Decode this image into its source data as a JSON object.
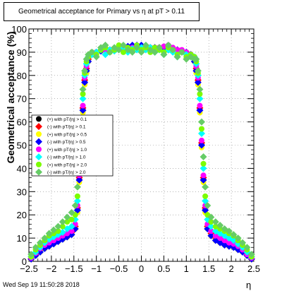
{
  "title": "Geometrical acceptance for Primary vs   η at pT > 0.11",
  "timestamp": "Wed Sep 19 11:50:28 2018",
  "chart_data": {
    "type": "scatter",
    "title": "Geometrical acceptance for Primary vs   η at pT > 0.11",
    "xlabel": "η",
    "ylabel": "Geometrical acceptance (%)",
    "xlim": [
      -2.5,
      2.5
    ],
    "ylim": [
      0,
      100
    ],
    "xticks": [
      "−2.5",
      "−2",
      "−1.5",
      "−1",
      "−0.5",
      "0",
      "0.5",
      "1",
      "1.5",
      "2",
      "2.5"
    ],
    "yticks": [
      "0",
      "10",
      "20",
      "30",
      "40",
      "50",
      "60",
      "70",
      "80",
      "90",
      "100"
    ],
    "legend_position": "left-middle",
    "series": [
      {
        "name": "(+) with pT/|η| > 0.1",
        "color": "#000000",
        "x": [
          -2.45,
          -2.35,
          -2.25,
          -2.15,
          -2.05,
          -1.95,
          -1.85,
          -1.75,
          -1.65,
          -1.55,
          -1.47,
          -1.42,
          -1.38,
          -1.34,
          -1.3,
          -1.26,
          -1.22,
          -1.18,
          -1.1,
          -1.0,
          -0.9,
          -0.8,
          -0.7,
          -0.6,
          -0.5,
          -0.4,
          -0.3,
          -0.2,
          -0.1,
          0.0,
          0.1,
          0.2,
          0.3,
          0.4,
          0.5,
          0.6,
          0.7,
          0.8,
          0.9,
          1.0,
          1.1,
          1.18,
          1.22,
          1.26,
          1.3,
          1.34,
          1.38,
          1.42,
          1.47,
          1.55,
          1.65,
          1.75,
          1.85,
          1.95,
          2.05,
          2.15,
          2.25,
          2.35,
          2.45
        ],
        "y": [
          1,
          3,
          5,
          6.5,
          7.5,
          8.5,
          9.5,
          10.5,
          11.5,
          12.5,
          15,
          22,
          35,
          50,
          65,
          77,
          82,
          86,
          89,
          90,
          90.5,
          91,
          91,
          91,
          91.5,
          92,
          92,
          92,
          92,
          92,
          92,
          92,
          92,
          92,
          91.5,
          91,
          91,
          91,
          90.5,
          90,
          89,
          86,
          82,
          77,
          65,
          50,
          35,
          22,
          15,
          12,
          10,
          9,
          8,
          7.5,
          7,
          6,
          5,
          3,
          1
        ]
      },
      {
        "name": "(-) with pT/|η| > 0.1",
        "color": "#ff0000",
        "x": [
          -2.45,
          -2.35,
          -2.25,
          -2.15,
          -2.05,
          -1.95,
          -1.85,
          -1.75,
          -1.65,
          -1.55,
          -1.47,
          -1.42,
          -1.38,
          -1.34,
          -1.3,
          -1.26,
          -1.22,
          -1.18,
          -1.1,
          -1.0,
          -0.9,
          -0.8,
          -0.7,
          -0.6,
          -0.5,
          -0.4,
          -0.3,
          -0.2,
          -0.1,
          0.0,
          0.1,
          0.2,
          0.3,
          0.4,
          0.5,
          0.6,
          0.7,
          0.8,
          0.9,
          1.0,
          1.1,
          1.18,
          1.22,
          1.26,
          1.3,
          1.34,
          1.38,
          1.42,
          1.47,
          1.55,
          1.65,
          1.75,
          1.85,
          1.95,
          2.05,
          2.15,
          2.25,
          2.35,
          2.45
        ],
        "y": [
          1,
          3,
          5,
          6.5,
          7.5,
          8.5,
          9.5,
          10.5,
          11.5,
          12.5,
          15,
          23,
          36,
          51,
          66,
          78,
          83,
          87,
          89,
          90,
          90.5,
          91,
          91,
          91,
          91.5,
          92,
          92,
          92,
          92,
          92,
          92,
          92,
          92,
          92,
          91.5,
          91,
          91,
          91,
          90.5,
          90,
          89,
          87,
          83,
          78,
          66,
          51,
          36,
          23,
          15,
          12,
          10,
          9,
          8,
          7.5,
          7,
          6,
          5,
          3,
          1
        ]
      },
      {
        "name": "(+) with pT/|η| > 0.5",
        "color": "#ffff00",
        "x": [
          -2.45,
          -2.35,
          -2.25,
          -2.15,
          -2.05,
          -1.95,
          -1.85,
          -1.75,
          -1.65,
          -1.55,
          -1.47,
          -1.42,
          -1.38,
          -1.34,
          -1.3,
          -1.26,
          -1.22,
          -1.18,
          -1.1,
          -1.0,
          -0.9,
          -0.8,
          -0.7,
          -0.6,
          -0.5,
          -0.4,
          -0.3,
          -0.2,
          -0.1,
          0.0,
          0.1,
          0.2,
          0.3,
          0.4,
          0.5,
          0.6,
          0.7,
          0.8,
          0.9,
          1.0,
          1.1,
          1.18,
          1.22,
          1.26,
          1.3,
          1.34,
          1.38,
          1.42,
          1.47,
          1.55,
          1.65,
          1.75,
          1.85,
          1.95,
          2.05,
          2.15,
          2.25,
          2.35,
          2.45
        ],
        "y": [
          1,
          2.5,
          4,
          5.5,
          6.5,
          7.5,
          8.5,
          9.5,
          10.5,
          11.5,
          14,
          21,
          34,
          49,
          64,
          76,
          81,
          86,
          89,
          90,
          90.5,
          91,
          91,
          91,
          91.5,
          92,
          92,
          92,
          92,
          92,
          92,
          92,
          92,
          92,
          91.5,
          91,
          91,
          91,
          90.5,
          90,
          89,
          86,
          81,
          76,
          64,
          49,
          34,
          21,
          14,
          11,
          9,
          8,
          7,
          6.5,
          6,
          5,
          4,
          2.5,
          1
        ]
      },
      {
        "name": "(-) with pT/|η| > 0.5",
        "color": "#0000ff",
        "x": [
          -2.45,
          -2.35,
          -2.25,
          -2.15,
          -2.05,
          -1.95,
          -1.85,
          -1.75,
          -1.65,
          -1.55,
          -1.47,
          -1.42,
          -1.38,
          -1.34,
          -1.3,
          -1.26,
          -1.22,
          -1.18,
          -1.1,
          -1.0,
          -0.9,
          -0.8,
          -0.7,
          -0.6,
          -0.5,
          -0.4,
          -0.3,
          -0.2,
          -0.1,
          0.0,
          0.1,
          0.2,
          0.3,
          0.4,
          0.5,
          0.6,
          0.7,
          0.8,
          0.9,
          1.0,
          1.1,
          1.18,
          1.22,
          1.26,
          1.3,
          1.34,
          1.38,
          1.42,
          1.47,
          1.55,
          1.65,
          1.75,
          1.85,
          1.95,
          2.05,
          2.15,
          2.25,
          2.35,
          2.45
        ],
        "y": [
          1,
          2.5,
          4,
          5.5,
          6.5,
          7.5,
          8.5,
          9.5,
          10.5,
          11.5,
          14,
          22,
          35,
          50,
          65,
          77,
          82,
          86,
          89,
          90,
          90.5,
          91,
          91,
          91.5,
          92,
          92,
          92.5,
          93,
          93,
          93,
          92.5,
          92,
          92,
          92,
          91.5,
          91,
          91,
          91,
          90.5,
          90,
          89,
          86,
          82,
          77,
          65,
          50,
          35,
          22,
          14,
          11,
          9,
          8,
          7,
          6.5,
          6,
          5,
          4,
          2.5,
          1
        ]
      },
      {
        "name": "(+) with pT/|η| > 1.0",
        "color": "#ff00ff",
        "x": [
          -2.45,
          -2.35,
          -2.25,
          -2.15,
          -2.05,
          -1.95,
          -1.85,
          -1.75,
          -1.65,
          -1.55,
          -1.47,
          -1.42,
          -1.38,
          -1.34,
          -1.3,
          -1.26,
          -1.22,
          -1.18,
          -1.1,
          -1.0,
          -0.9,
          -0.8,
          -0.7,
          -0.6,
          -0.5,
          -0.4,
          -0.3,
          -0.2,
          -0.1,
          0.0,
          0.1,
          0.2,
          0.3,
          0.4,
          0.5,
          0.6,
          0.7,
          0.8,
          0.9,
          1.0,
          1.1,
          1.18,
          1.22,
          1.26,
          1.3,
          1.34,
          1.38,
          1.42,
          1.47,
          1.55,
          1.65,
          1.75,
          1.85,
          1.95,
          2.05,
          2.15,
          2.25,
          2.35,
          2.45
        ],
        "y": [
          1.5,
          3.5,
          5.5,
          7,
          8,
          9,
          10,
          11,
          12,
          13,
          16,
          24,
          37,
          52,
          67,
          79,
          84,
          88,
          90,
          90,
          91,
          91,
          90.5,
          91,
          91.5,
          92,
          91,
          92,
          92,
          91.5,
          92,
          91,
          92,
          92,
          92.5,
          93,
          92,
          91,
          91,
          90,
          89,
          88,
          84,
          79,
          67,
          52,
          37,
          24,
          16,
          13,
          11,
          10,
          9,
          8,
          7.5,
          6.5,
          5,
          3,
          1.5
        ]
      },
      {
        "name": "(-) with pT/|η| > 1.0",
        "color": "#00ffff",
        "x": [
          -2.45,
          -2.35,
          -2.25,
          -2.15,
          -2.05,
          -1.95,
          -1.85,
          -1.75,
          -1.65,
          -1.55,
          -1.47,
          -1.42,
          -1.38,
          -1.34,
          -1.3,
          -1.26,
          -1.22,
          -1.18,
          -1.1,
          -1.0,
          -0.9,
          -0.8,
          -0.7,
          -0.6,
          -0.5,
          -0.4,
          -0.3,
          -0.2,
          -0.1,
          0.0,
          0.1,
          0.2,
          0.3,
          0.4,
          0.5,
          0.6,
          0.7,
          0.8,
          0.9,
          1.0,
          1.1,
          1.18,
          1.22,
          1.26,
          1.3,
          1.34,
          1.38,
          1.42,
          1.47,
          1.55,
          1.65,
          1.75,
          1.85,
          1.95,
          2.05,
          2.15,
          2.25,
          2.35,
          2.45
        ],
        "y": [
          2,
          4,
          6,
          8,
          9.5,
          10.5,
          11.5,
          12.5,
          14,
          15,
          18,
          26,
          40,
          55,
          70,
          80,
          85,
          88,
          89,
          90,
          91,
          89,
          91,
          90.5,
          92,
          91,
          90,
          91.5,
          91,
          92,
          91,
          92,
          90,
          91,
          89,
          91,
          90,
          88,
          90,
          89,
          88,
          88,
          85,
          80,
          70,
          55,
          40,
          26,
          18,
          15,
          13,
          12,
          11,
          10,
          9,
          7.5,
          6,
          4,
          2
        ]
      },
      {
        "name": "(+) with pT/|η| > 2.0",
        "color": "#7cfc00",
        "x": [
          -2.45,
          -2.35,
          -2.25,
          -2.15,
          -2.05,
          -1.95,
          -1.85,
          -1.75,
          -1.65,
          -1.55,
          -1.47,
          -1.42,
          -1.38,
          -1.34,
          -1.3,
          -1.26,
          -1.22,
          -1.18,
          -1.1,
          -1.0,
          -0.9,
          -0.8,
          -0.7,
          -0.6,
          -0.5,
          -0.4,
          -0.3,
          -0.2,
          -0.1,
          0.0,
          0.1,
          0.2,
          0.3,
          0.4,
          0.5,
          0.6,
          0.7,
          0.8,
          0.9,
          1.0,
          1.1,
          1.18,
          1.22,
          1.26,
          1.3,
          1.34,
          1.38,
          1.42,
          1.47,
          1.55,
          1.65,
          1.75,
          1.85,
          1.95,
          2.05,
          2.15,
          2.25,
          2.35,
          2.45
        ],
        "y": [
          2,
          5,
          7,
          9,
          11,
          12,
          13,
          15,
          17,
          18,
          20,
          28,
          42,
          57,
          72,
          81,
          86,
          88,
          90,
          89,
          91,
          92,
          90,
          91,
          93,
          90,
          92,
          91,
          93,
          91,
          92,
          90,
          92,
          91,
          90,
          92,
          91,
          89,
          90,
          88,
          89,
          88,
          86,
          81,
          72,
          57,
          42,
          28,
          20,
          17,
          15,
          14,
          13,
          12,
          11,
          9,
          7,
          5,
          2
        ]
      },
      {
        "name": "(-) with pT/|η| > 2.0",
        "color": "#66cc66",
        "x": [
          -2.45,
          -2.35,
          -2.25,
          -2.15,
          -2.05,
          -1.95,
          -1.85,
          -1.75,
          -1.65,
          -1.55,
          -1.47,
          -1.42,
          -1.38,
          -1.34,
          -1.3,
          -1.26,
          -1.22,
          -1.18,
          -1.1,
          -1.0,
          -0.9,
          -0.8,
          -0.7,
          -0.6,
          -0.5,
          -0.4,
          -0.3,
          -0.2,
          -0.1,
          0.0,
          0.1,
          0.2,
          0.3,
          0.4,
          0.5,
          0.6,
          0.7,
          0.8,
          0.9,
          1.0,
          1.1,
          1.18,
          1.22,
          1.26,
          1.3,
          1.34,
          1.38,
          1.42,
          1.47,
          1.55,
          1.65,
          1.75,
          1.85,
          1.95,
          2.05,
          2.15,
          2.25,
          2.35,
          2.45
        ],
        "y": [
          3,
          6,
          8,
          10,
          12,
          13.5,
          15,
          17,
          19,
          21,
          24,
          32,
          45,
          60,
          74,
          82,
          87,
          89,
          90,
          88,
          92,
          93,
          90,
          92,
          91,
          93,
          91,
          90,
          92,
          90,
          93,
          91,
          90,
          92,
          89,
          93,
          91,
          88,
          90,
          87,
          88,
          87,
          87,
          82,
          74,
          60,
          45,
          32,
          24,
          19,
          17,
          15.5,
          14,
          13,
          11.5,
          10,
          8,
          6,
          3
        ]
      }
    ]
  }
}
